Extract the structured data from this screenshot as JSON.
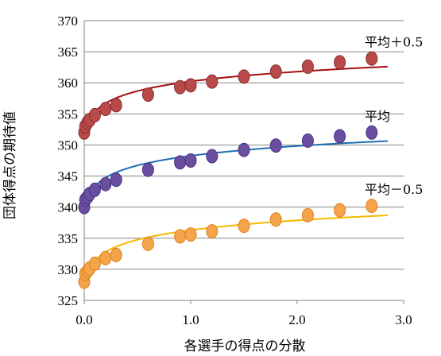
{
  "chart_data": {
    "type": "scatter",
    "title": "",
    "xlabel": "各選手の得点の分散",
    "ylabel": "団体得点の期待値",
    "xlim": [
      0.0,
      3.0
    ],
    "ylim": [
      325,
      370
    ],
    "x_ticks": [
      0.0,
      1.0,
      2.0,
      3.0
    ],
    "x_tick_labels": [
      "0.0",
      "1.0",
      "2.0",
      "3.0"
    ],
    "y_ticks": [
      325,
      330,
      335,
      340,
      345,
      350,
      355,
      360,
      365,
      370
    ],
    "y_tick_labels": [
      "325",
      "330",
      "335",
      "340",
      "345",
      "350",
      "355",
      "360",
      "365",
      "370"
    ],
    "grid": "horizontal",
    "legend": "none",
    "series": [
      {
        "name": "平均＋0.5",
        "marker_color": "#b84a4a",
        "marker_edge": "#8c2a2a",
        "line_color": "#a50f0f",
        "x": [
          0.0,
          0.01,
          0.03,
          0.05,
          0.1,
          0.2,
          0.3,
          0.6,
          0.9,
          1.0,
          1.2,
          1.5,
          1.8,
          2.1,
          2.4,
          2.7
        ],
        "y": [
          352.0,
          353.0,
          353.6,
          354.0,
          354.8,
          355.8,
          356.4,
          358.1,
          359.3,
          359.6,
          360.2,
          361.0,
          361.8,
          362.6,
          363.3,
          363.9
        ],
        "fit_x_max": 2.85
      },
      {
        "name": "平均",
        "marker_color": "#6a4fa0",
        "marker_edge": "#4a3380",
        "line_color": "#1f6fb5",
        "x": [
          0.0,
          0.01,
          0.03,
          0.05,
          0.1,
          0.2,
          0.3,
          0.6,
          0.9,
          1.0,
          1.2,
          1.5,
          1.8,
          2.1,
          2.4,
          2.7
        ],
        "y": [
          340.0,
          341.2,
          341.6,
          342.1,
          342.8,
          343.7,
          344.4,
          346.0,
          347.2,
          347.5,
          348.2,
          349.2,
          349.9,
          350.7,
          351.4,
          352.0
        ],
        "fit_x_max": 2.85
      },
      {
        "name": "平均－0.5",
        "marker_color": "#f4a44a",
        "marker_edge": "#e07f1a",
        "line_color": "#f5b800",
        "x": [
          0.0,
          0.01,
          0.03,
          0.05,
          0.1,
          0.2,
          0.3,
          0.6,
          0.9,
          1.0,
          1.2,
          1.5,
          1.8,
          2.1,
          2.4,
          2.7
        ],
        "y": [
          328.0,
          329.3,
          329.7,
          330.1,
          330.9,
          331.8,
          332.3,
          334.1,
          335.3,
          335.6,
          336.1,
          337.0,
          338.0,
          338.7,
          339.5,
          340.2
        ],
        "fit_x_max": 2.85
      }
    ]
  }
}
